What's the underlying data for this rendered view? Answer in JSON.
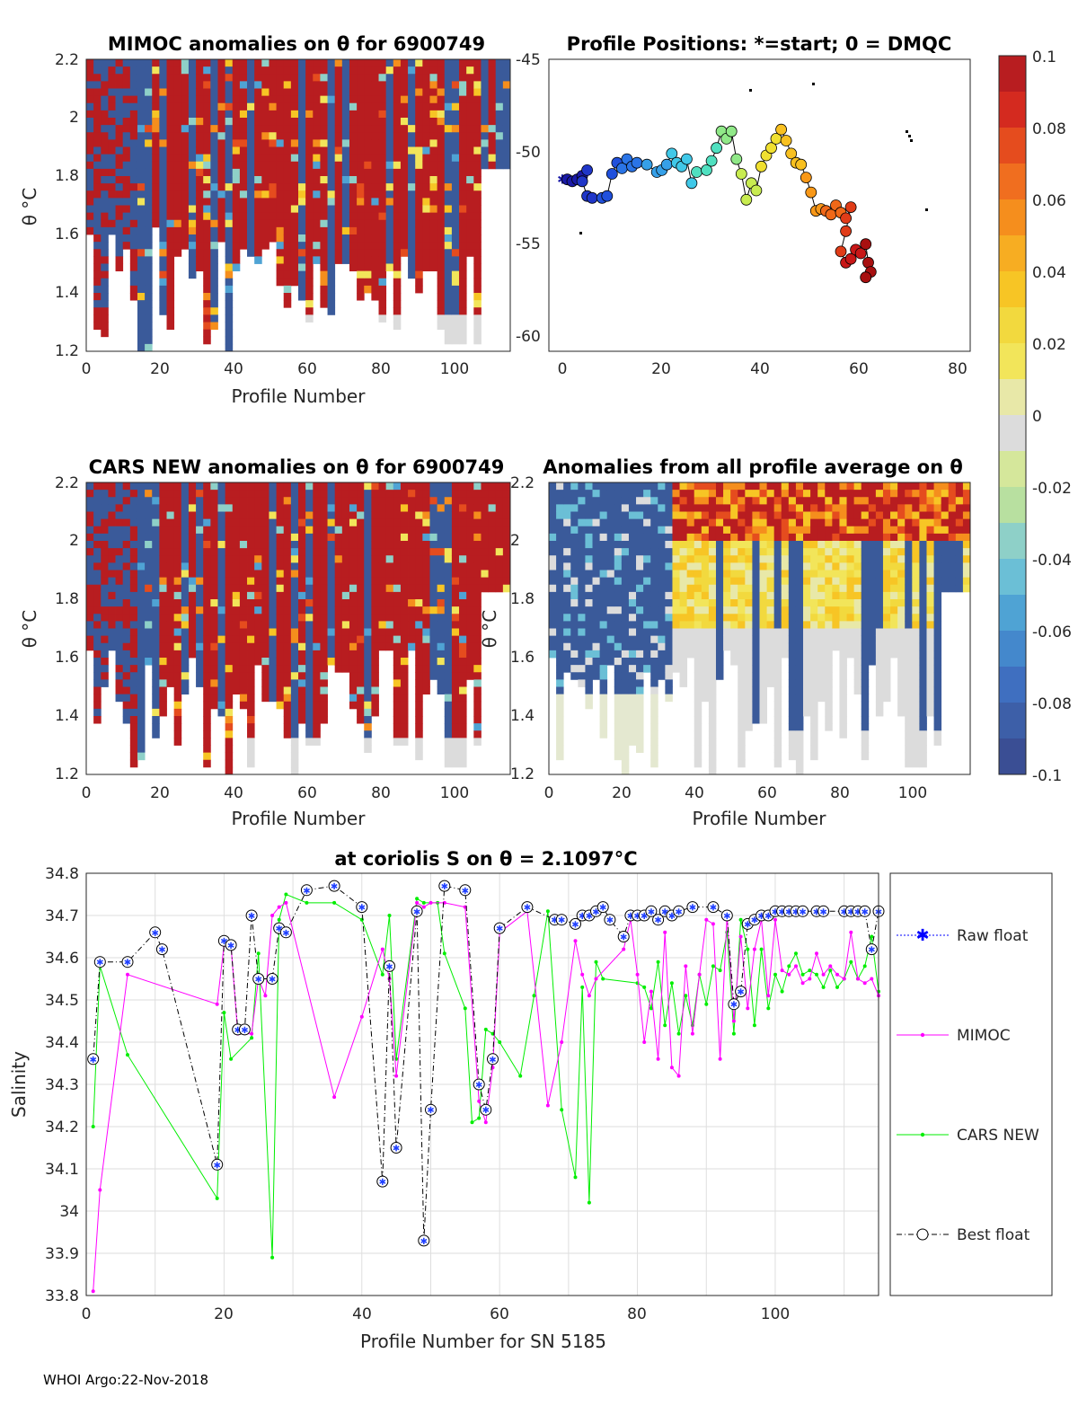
{
  "footer": "WHOI Argo:22-Nov-2018",
  "panels": {
    "mimoc": {
      "title": "MIMOC anomalies on θ  for 6900749",
      "xlabel": "Profile Number",
      "ylabel": "θ °C",
      "xticks": [
        "0",
        "20",
        "40",
        "60",
        "80",
        "100"
      ],
      "yticks": [
        "1.2",
        "1.4",
        "1.6",
        "1.8",
        "2",
        "2.2"
      ]
    },
    "positions": {
      "title": "Profile Positions: *=start; 0 = DMQC",
      "xticks": [
        "0",
        "20",
        "40",
        "60",
        "80"
      ],
      "yticks": [
        "-45",
        "-50",
        "-55",
        "-60"
      ]
    },
    "cars": {
      "title": "CARS NEW anomalies on θ for 6900749",
      "xlabel": "Profile Number",
      "ylabel": "θ °C",
      "xticks": [
        "0",
        "20",
        "40",
        "60",
        "80",
        "100"
      ],
      "yticks": [
        "1.2",
        "1.4",
        "1.6",
        "1.8",
        "2",
        "2.2"
      ]
    },
    "allavg": {
      "title": "Anomalies from all profile average on θ",
      "xlabel": "Profile Number",
      "ylabel": "θ °C",
      "xticks": [
        "0",
        "20",
        "40",
        "60",
        "80",
        "100"
      ],
      "yticks": [
        "1.2",
        "1.4",
        "1.6",
        "1.8",
        "2",
        "2.2"
      ]
    }
  },
  "colorbar": {
    "ticks": [
      "0.1",
      "0.08",
      "0.06",
      "0.04",
      "0.02",
      "0",
      "-0.02",
      "-0.04",
      "-0.06",
      "-0.08",
      "-0.1"
    ],
    "colors": [
      "#3a4e94",
      "#3f6fc0",
      "#4fa3d4",
      "#8ed0c8",
      "#d5e79b",
      "#dcdcdc",
      "#f2e55a",
      "#f7c525",
      "#f58e1d",
      "#e54c1e",
      "#b81d20"
    ]
  },
  "chart_data": {
    "type": "line",
    "title": "at coriolis S on θ = 2.1097°C",
    "xlabel": "Profile Number for SN 5185",
    "ylabel": "Salinity",
    "xlim": [
      0,
      115
    ],
    "ylim": [
      33.8,
      34.8
    ],
    "xticks": [
      "0",
      "20",
      "40",
      "60",
      "80",
      "100"
    ],
    "yticks": [
      "33.8",
      "33.9",
      "34",
      "34.1",
      "34.2",
      "34.3",
      "34.4",
      "34.5",
      "34.6",
      "34.7",
      "34.8"
    ],
    "legend": [
      "Raw float",
      "MIMOC",
      "CARS NEW",
      "Best float"
    ],
    "series": [
      {
        "name": "Best float",
        "color": "#000000",
        "style": "dashdot",
        "marker": "circle-star",
        "points": [
          [
            1,
            34.36
          ],
          [
            2,
            34.59
          ],
          [
            6,
            34.59
          ],
          [
            10,
            34.66
          ],
          [
            11,
            34.62
          ],
          [
            19,
            34.11
          ],
          [
            20,
            34.64
          ],
          [
            21,
            34.63
          ],
          [
            22,
            34.43
          ],
          [
            23,
            34.43
          ],
          [
            24,
            34.7
          ],
          [
            25,
            34.55
          ],
          [
            27,
            34.55
          ],
          [
            28,
            34.67
          ],
          [
            29,
            34.66
          ],
          [
            32,
            34.76
          ],
          [
            36,
            34.77
          ],
          [
            40,
            34.72
          ],
          [
            43,
            34.07
          ],
          [
            44,
            34.58
          ],
          [
            45,
            34.15
          ],
          [
            48,
            34.71
          ],
          [
            49,
            33.93
          ],
          [
            50,
            34.24
          ],
          [
            52,
            34.77
          ],
          [
            55,
            34.76
          ],
          [
            57,
            34.3
          ],
          [
            58,
            34.24
          ],
          [
            59,
            34.36
          ],
          [
            60,
            34.67
          ],
          [
            64,
            34.72
          ],
          [
            68,
            34.69
          ],
          [
            69,
            34.69
          ],
          [
            71,
            34.68
          ],
          [
            72,
            34.7
          ],
          [
            73,
            34.7
          ],
          [
            74,
            34.71
          ],
          [
            75,
            34.72
          ],
          [
            76,
            34.69
          ],
          [
            78,
            34.65
          ],
          [
            79,
            34.7
          ],
          [
            80,
            34.7
          ],
          [
            81,
            34.7
          ],
          [
            82,
            34.71
          ],
          [
            83,
            34.69
          ],
          [
            84,
            34.71
          ],
          [
            85,
            34.7
          ],
          [
            86,
            34.71
          ],
          [
            88,
            34.72
          ],
          [
            91,
            34.72
          ],
          [
            93,
            34.7
          ],
          [
            94,
            34.49
          ],
          [
            95,
            34.52
          ],
          [
            96,
            34.68
          ],
          [
            97,
            34.69
          ],
          [
            98,
            34.7
          ],
          [
            99,
            34.7
          ],
          [
            100,
            34.71
          ],
          [
            101,
            34.71
          ],
          [
            102,
            34.71
          ],
          [
            103,
            34.71
          ],
          [
            104,
            34.71
          ],
          [
            106,
            34.71
          ],
          [
            107,
            34.71
          ],
          [
            110,
            34.71
          ],
          [
            111,
            34.71
          ],
          [
            112,
            34.71
          ],
          [
            113,
            34.71
          ],
          [
            114,
            34.62
          ],
          [
            115,
            34.71
          ]
        ]
      },
      {
        "name": "MIMOC",
        "color": "#ff00ff",
        "style": "solid",
        "marker": "dot",
        "points": [
          [
            1,
            33.81
          ],
          [
            2,
            34.05
          ],
          [
            6,
            34.56
          ],
          [
            19,
            34.49
          ],
          [
            20,
            34.63
          ],
          [
            21,
            34.63
          ],
          [
            22,
            34.42
          ],
          [
            24,
            34.42
          ],
          [
            25,
            34.55
          ],
          [
            26,
            34.51
          ],
          [
            27,
            34.7
          ],
          [
            28,
            34.72
          ],
          [
            29,
            34.73
          ],
          [
            36,
            34.27
          ],
          [
            40,
            34.46
          ],
          [
            43,
            34.62
          ],
          [
            44,
            34.55
          ],
          [
            45,
            34.32
          ],
          [
            48,
            34.73
          ],
          [
            49,
            34.72
          ],
          [
            50,
            34.73
          ],
          [
            52,
            34.73
          ],
          [
            55,
            34.72
          ],
          [
            57,
            34.26
          ],
          [
            58,
            34.21
          ],
          [
            59,
            34.34
          ],
          [
            60,
            34.66
          ],
          [
            64,
            34.71
          ],
          [
            67,
            34.25
          ],
          [
            69,
            34.4
          ],
          [
            71,
            34.64
          ],
          [
            72,
            34.56
          ],
          [
            73,
            34.51
          ],
          [
            74,
            34.55
          ],
          [
            78,
            34.62
          ],
          [
            79,
            34.69
          ],
          [
            80,
            34.56
          ],
          [
            81,
            34.4
          ],
          [
            82,
            34.52
          ],
          [
            83,
            34.36
          ],
          [
            84,
            34.66
          ],
          [
            85,
            34.34
          ],
          [
            86,
            34.32
          ],
          [
            87,
            34.58
          ],
          [
            88,
            34.42
          ],
          [
            89,
            34.56
          ],
          [
            90,
            34.69
          ],
          [
            91,
            34.68
          ],
          [
            92,
            34.36
          ],
          [
            93,
            34.7
          ],
          [
            94,
            34.45
          ],
          [
            95,
            34.65
          ],
          [
            96,
            34.48
          ],
          [
            97,
            34.62
          ],
          [
            98,
            34.69
          ],
          [
            99,
            34.51
          ],
          [
            100,
            34.69
          ],
          [
            101,
            34.57
          ],
          [
            102,
            34.56
          ],
          [
            103,
            34.58
          ],
          [
            104,
            34.54
          ],
          [
            105,
            34.55
          ],
          [
            106,
            34.61
          ],
          [
            107,
            34.56
          ],
          [
            108,
            34.58
          ],
          [
            109,
            34.56
          ],
          [
            110,
            34.55
          ],
          [
            111,
            34.66
          ],
          [
            112,
            34.55
          ],
          [
            113,
            34.54
          ],
          [
            114,
            34.55
          ],
          [
            115,
            34.51
          ]
        ]
      },
      {
        "name": "CARS NEW",
        "color": "#00ee00",
        "style": "solid",
        "marker": "dot",
        "points": [
          [
            1,
            34.2
          ],
          [
            2,
            34.58
          ],
          [
            6,
            34.37
          ],
          [
            19,
            34.03
          ],
          [
            20,
            34.47
          ],
          [
            21,
            34.36
          ],
          [
            24,
            34.41
          ],
          [
            25,
            34.61
          ],
          [
            27,
            33.89
          ],
          [
            28,
            34.69
          ],
          [
            29,
            34.75
          ],
          [
            32,
            34.73
          ],
          [
            36,
            34.73
          ],
          [
            40,
            34.69
          ],
          [
            43,
            34.56
          ],
          [
            44,
            34.7
          ],
          [
            45,
            34.36
          ],
          [
            48,
            34.74
          ],
          [
            49,
            34.73
          ],
          [
            51,
            34.73
          ],
          [
            52,
            34.61
          ],
          [
            55,
            34.48
          ],
          [
            56,
            34.21
          ],
          [
            57,
            34.22
          ],
          [
            58,
            34.43
          ],
          [
            59,
            34.42
          ],
          [
            60,
            34.4
          ],
          [
            63,
            34.32
          ],
          [
            65,
            34.51
          ],
          [
            67,
            34.71
          ],
          [
            69,
            34.24
          ],
          [
            71,
            34.08
          ],
          [
            72,
            34.53
          ],
          [
            73,
            34.02
          ],
          [
            74,
            34.59
          ],
          [
            75,
            34.55
          ],
          [
            80,
            34.54
          ],
          [
            81,
            34.53
          ],
          [
            82,
            34.48
          ],
          [
            83,
            34.59
          ],
          [
            84,
            34.44
          ],
          [
            85,
            34.54
          ],
          [
            86,
            34.42
          ],
          [
            87,
            34.51
          ],
          [
            88,
            34.44
          ],
          [
            89,
            34.56
          ],
          [
            90,
            34.49
          ],
          [
            91,
            34.58
          ],
          [
            92,
            34.57
          ],
          [
            93,
            34.66
          ],
          [
            94,
            34.42
          ],
          [
            95,
            34.69
          ],
          [
            96,
            34.62
          ],
          [
            97,
            34.44
          ],
          [
            98,
            34.62
          ],
          [
            99,
            34.48
          ],
          [
            100,
            34.56
          ],
          [
            101,
            34.52
          ],
          [
            102,
            34.58
          ],
          [
            103,
            34.61
          ],
          [
            104,
            34.56
          ],
          [
            105,
            34.57
          ],
          [
            106,
            34.56
          ],
          [
            107,
            34.53
          ],
          [
            108,
            34.57
          ],
          [
            109,
            34.53
          ],
          [
            110,
            34.55
          ],
          [
            111,
            34.59
          ],
          [
            112,
            34.55
          ],
          [
            113,
            34.58
          ],
          [
            114,
            34.65
          ],
          [
            115,
            34.52
          ]
        ]
      }
    ]
  },
  "positions_data": {
    "type": "scatter",
    "xlim": [
      0,
      82
    ],
    "ylim": [
      -60.5,
      -45
    ],
    "track": [
      [
        0,
        -51.5
      ],
      [
        1,
        -51.5
      ],
      [
        2,
        -51.6
      ],
      [
        3,
        -51.5
      ],
      [
        4,
        -51.3
      ],
      [
        5,
        -51
      ],
      [
        4,
        -51.6
      ],
      [
        5,
        -52.4
      ],
      [
        6,
        -52.5
      ],
      [
        8,
        -52.5
      ],
      [
        9,
        -52.4
      ],
      [
        10,
        -51.2
      ],
      [
        11,
        -50.6
      ],
      [
        12,
        -50.9
      ],
      [
        13,
        -50.4
      ],
      [
        14,
        -50.8
      ],
      [
        15,
        -50.6
      ],
      [
        17,
        -50.7
      ],
      [
        19,
        -51.1
      ],
      [
        20,
        -51
      ],
      [
        21,
        -50.7
      ],
      [
        22,
        -50.1
      ],
      [
        23,
        -50.6
      ],
      [
        24,
        -50.8
      ],
      [
        25,
        -50.4
      ],
      [
        26,
        -51.7
      ],
      [
        27,
        -51.1
      ],
      [
        29,
        -51
      ],
      [
        30,
        -50.5
      ],
      [
        31,
        -49.8
      ],
      [
        32,
        -48.9
      ],
      [
        33,
        -49.3
      ],
      [
        34,
        -48.9
      ],
      [
        35,
        -50.4
      ],
      [
        36,
        -51.2
      ],
      [
        37,
        -52.6
      ],
      [
        38,
        -51.7
      ],
      [
        39,
        -52.1
      ],
      [
        40,
        -50.8
      ],
      [
        41,
        -50.2
      ],
      [
        42,
        -49.8
      ],
      [
        43,
        -49.3
      ],
      [
        44,
        -48.8
      ],
      [
        45,
        -49.4
      ],
      [
        46,
        -50.1
      ],
      [
        47,
        -50.6
      ],
      [
        48,
        -50.7
      ],
      [
        49,
        -51.4
      ],
      [
        50,
        -52.2
      ],
      [
        51,
        -53.2
      ],
      [
        52,
        -53.1
      ],
      [
        53,
        -53.2
      ],
      [
        54,
        -53.4
      ],
      [
        55,
        -52.9
      ],
      [
        56,
        -53.3
      ],
      [
        57,
        -53.6
      ],
      [
        58,
        -53.0
      ],
      [
        57,
        -54.3
      ],
      [
        56,
        -55.4
      ],
      [
        57,
        -56.0
      ],
      [
        58,
        -55.8
      ],
      [
        59,
        -55.3
      ],
      [
        60,
        -55.5
      ],
      [
        61,
        -55.0
      ],
      [
        61.5,
        -56.0
      ],
      [
        62,
        -56.5
      ],
      [
        61,
        -56.8
      ]
    ]
  }
}
